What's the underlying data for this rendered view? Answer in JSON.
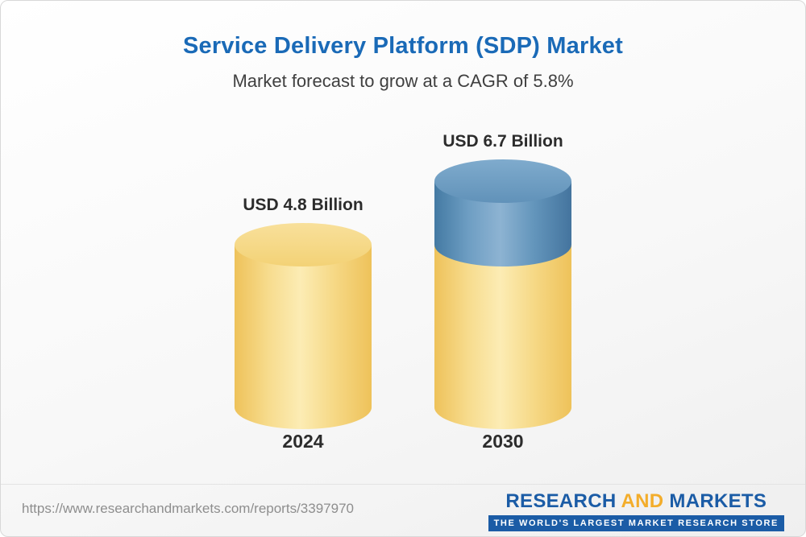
{
  "header": {
    "title": "Service Delivery Platform (SDP) Market",
    "subtitle": "Market forecast to grow at a CAGR of 5.8%"
  },
  "chart_data": {
    "type": "bar",
    "title": "Service Delivery Platform (SDP) Market",
    "subtitle": "Market forecast to grow at a CAGR of 5.8%",
    "cagr_percent": 5.8,
    "unit": "USD Billion",
    "categories": [
      "2024",
      "2030"
    ],
    "values": [
      4.8,
      6.7
    ],
    "value_labels": [
      "USD 4.8 Billion",
      "USD 6.7 Billion"
    ],
    "segments": [
      [
        4.8
      ],
      [
        4.8,
        1.9
      ]
    ],
    "segment_colors": {
      "base": "#F2CE6E",
      "growth": "#5D8FB9"
    },
    "ylim": [
      0,
      7
    ],
    "grid": false,
    "legend": false
  },
  "footer": {
    "url": "https://www.researchandmarkets.com/reports/3397970",
    "logo": {
      "research": "RESEARCH",
      "and": "AND",
      "markets": "MARKETS",
      "tagline": "THE WORLD'S LARGEST MARKET RESEARCH STORE"
    }
  }
}
